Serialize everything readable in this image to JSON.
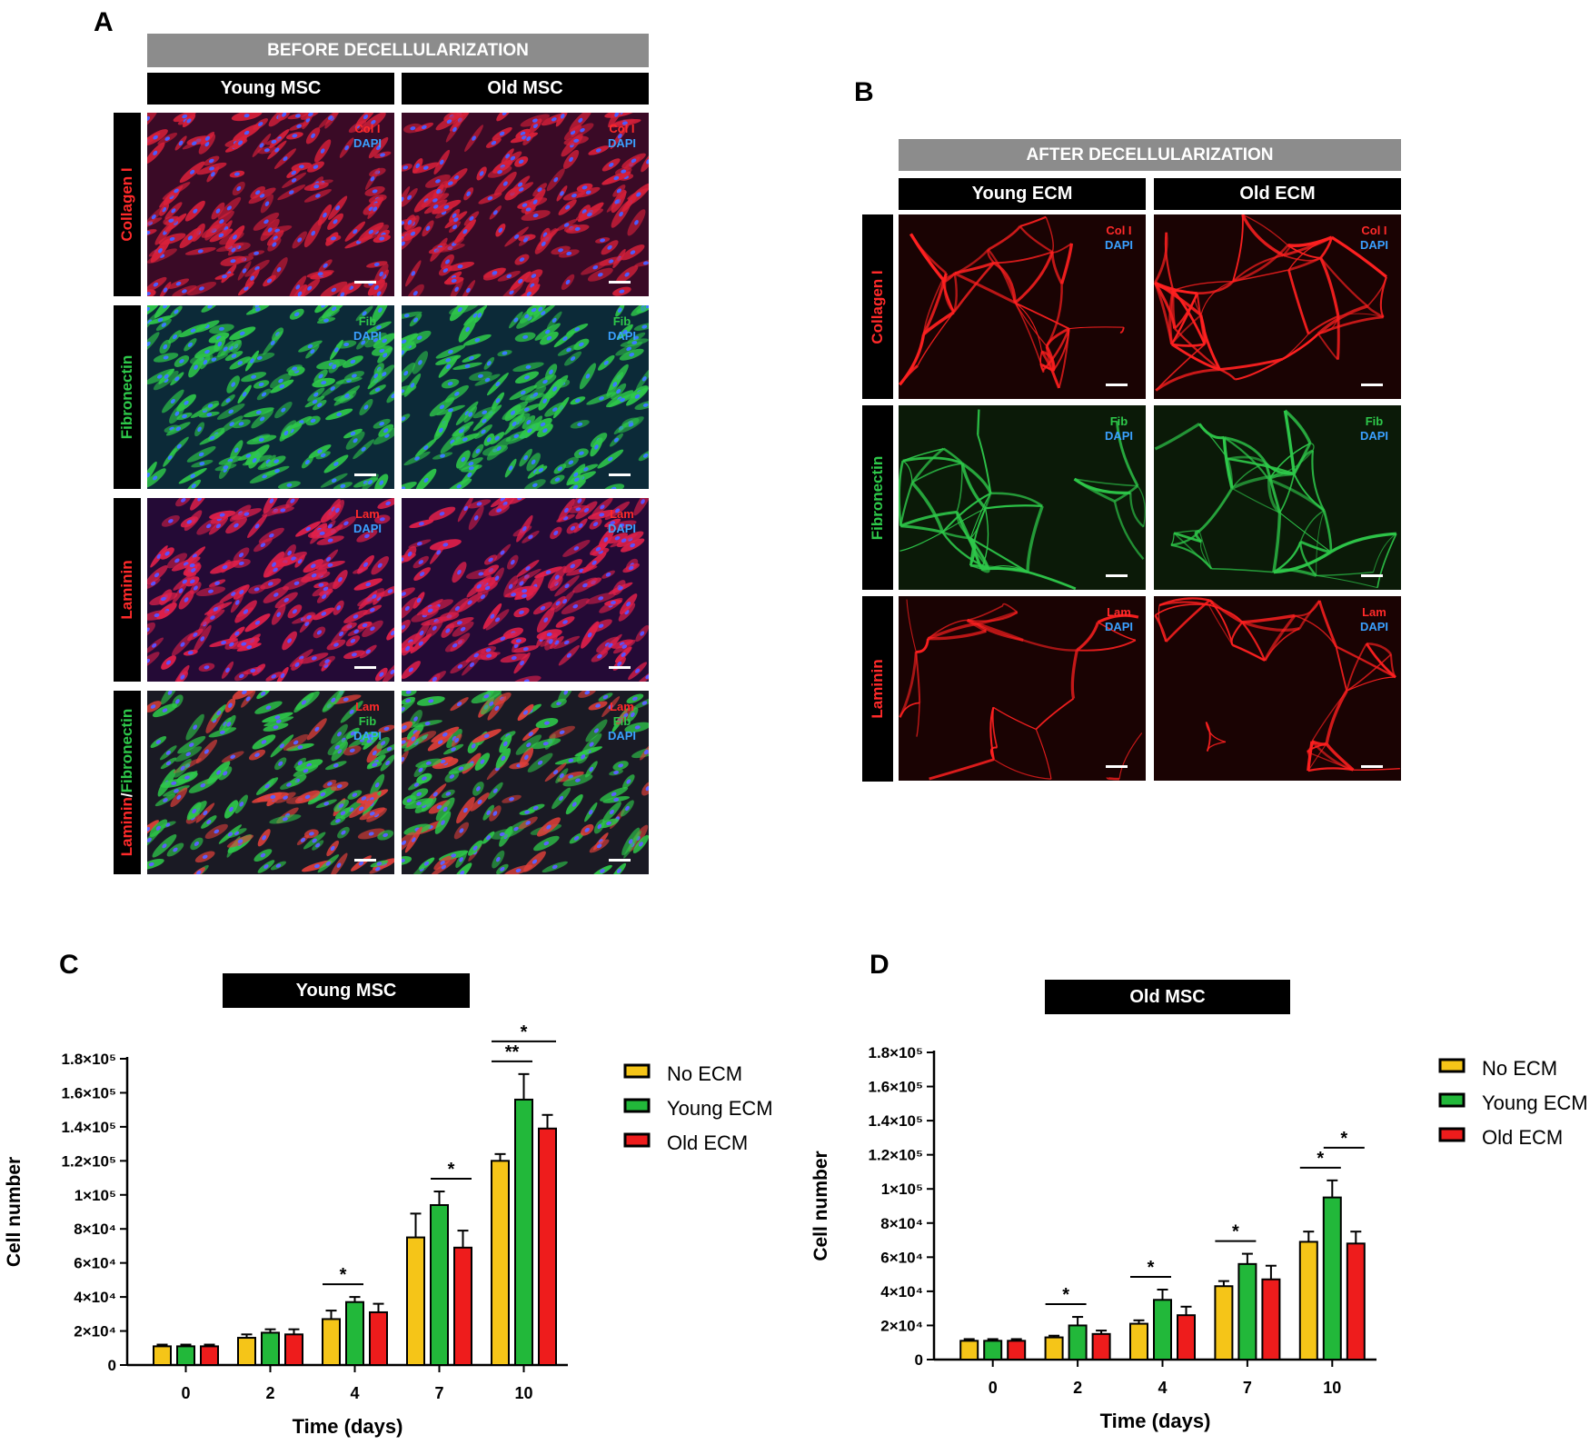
{
  "panelA": {
    "letter": "A",
    "header": "BEFORE DECELLULARIZATION",
    "columns": [
      "Young MSC",
      "Old MSC"
    ],
    "rows": [
      {
        "label": "Collagen I",
        "stain": [
          "Col I",
          "DAPI"
        ]
      },
      {
        "label": "Fibronectin",
        "stain": [
          "Fib",
          "DAPI"
        ]
      },
      {
        "label": "Laminin",
        "stain": [
          "Lam",
          "DAPI"
        ]
      },
      {
        "label_part1": "Laminin",
        "label_sep": "/",
        "label_part2": "Fibronectin",
        "stain": [
          "Lam",
          "Fib",
          "DAPI"
        ]
      }
    ]
  },
  "panelB": {
    "letter": "B",
    "header": "AFTER DECELLULARIZATION",
    "columns": [
      "Young ECM",
      "Old ECM"
    ],
    "rows": [
      {
        "label": "Collagen I",
        "stain": [
          "Col I",
          "DAPI"
        ]
      },
      {
        "label": "Fibronectin",
        "stain": [
          "Fib",
          "DAPI"
        ]
      },
      {
        "label": "Laminin",
        "stain": [
          "Lam",
          "DAPI"
        ]
      }
    ]
  },
  "colors": {
    "no_ecm": "#f5c518",
    "young_ecm": "#22b83a",
    "old_ecm": "#ee1c1c",
    "red_stain": "#ff2a2a",
    "green_stain": "#2ec84a",
    "blue_stain": "#3aa0ff"
  },
  "chart_data": [
    {
      "panel": "C",
      "type": "bar",
      "title": "Young MSC",
      "xlabel": "Time (days)",
      "ylabel": "Cell number",
      "categories": [
        "0",
        "2",
        "4",
        "7",
        "10"
      ],
      "ylim": [
        0,
        180000
      ],
      "ytick_labels": [
        "0",
        "2×10⁴",
        "4×10⁴",
        "6×10⁴",
        "8×10⁴",
        "1×10⁵",
        "1.2×10⁵",
        "1.4×10⁵",
        "1.6×10⁵",
        "1.8×10⁵"
      ],
      "legend": "right",
      "series": [
        {
          "name": "No ECM",
          "values": [
            11000,
            16000,
            27000,
            75000,
            120000
          ],
          "errors": [
            1000,
            2000,
            5000,
            14000,
            4000
          ]
        },
        {
          "name": "Young ECM",
          "values": [
            11000,
            19000,
            37000,
            94000,
            156000
          ],
          "errors": [
            1000,
            2000,
            3000,
            8000,
            15000
          ]
        },
        {
          "name": "Old ECM",
          "values": [
            11000,
            18000,
            31000,
            69000,
            139000
          ],
          "errors": [
            1000,
            3000,
            5000,
            10000,
            8000
          ]
        }
      ],
      "significance": [
        {
          "label": "*",
          "category": "4",
          "from": "No ECM",
          "to": "Young ECM"
        },
        {
          "label": "*",
          "category": "7",
          "from": "Young ECM",
          "to": "Old ECM"
        },
        {
          "label": "**",
          "category": "10",
          "from": "No ECM",
          "to": "Young ECM"
        },
        {
          "label": "*",
          "category": "10",
          "from": "No ECM",
          "to": "Old ECM"
        }
      ]
    },
    {
      "panel": "D",
      "type": "bar",
      "title": "Old MSC",
      "xlabel": "Time (days)",
      "ylabel": "Cell number",
      "categories": [
        "0",
        "2",
        "4",
        "7",
        "10"
      ],
      "ylim": [
        0,
        180000
      ],
      "ytick_labels": [
        "0",
        "2×10⁴",
        "4×10⁴",
        "6×10⁴",
        "8×10⁴",
        "1×10⁵",
        "1.2×10⁵",
        "1.4×10⁵",
        "1.6×10⁵",
        "1.8×10⁵"
      ],
      "legend": "right",
      "series": [
        {
          "name": "No ECM",
          "values": [
            11000,
            13000,
            21000,
            43000,
            69000
          ],
          "errors": [
            1000,
            1000,
            2000,
            3000,
            6000
          ]
        },
        {
          "name": "Young ECM",
          "values": [
            11000,
            20000,
            35000,
            56000,
            95000
          ],
          "errors": [
            1000,
            5000,
            6000,
            6000,
            10000
          ]
        },
        {
          "name": "Old ECM",
          "values": [
            11000,
            15000,
            26000,
            47000,
            68000
          ],
          "errors": [
            1000,
            2000,
            5000,
            8000,
            7000
          ]
        }
      ],
      "significance": [
        {
          "label": "*",
          "category": "2",
          "from": "No ECM",
          "to": "Young ECM"
        },
        {
          "label": "*",
          "category": "4",
          "from": "No ECM",
          "to": "Young ECM"
        },
        {
          "label": "*",
          "category": "7",
          "from": "No ECM",
          "to": "Young ECM"
        },
        {
          "label": "*",
          "category": "10",
          "from": "No ECM",
          "to": "Young ECM"
        },
        {
          "label": "*",
          "category": "10",
          "from": "Young ECM",
          "to": "Old ECM"
        }
      ]
    }
  ]
}
